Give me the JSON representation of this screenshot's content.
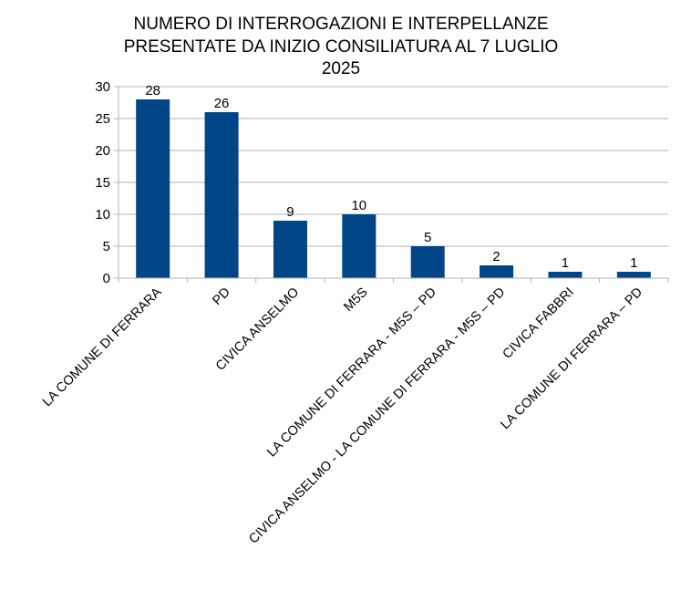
{
  "chart_data": {
    "type": "bar",
    "title": [
      "NUMERO DI INTERROGAZIONI E INTERPELLANZE",
      "PRESENTATE DA INIZIO CONSILIATURA AL 7 LUGLIO",
      "2025"
    ],
    "categories": [
      "LA COMUNE DI FERRARA",
      "PD",
      "CIVICA ANSELMO",
      "M5S",
      "LA COMUNE DI FERRARA - M5S – PD",
      "CIVICA ANSELMO - LA COMUNE DI FERRARA - M5S – PD",
      "CIVICA FABBRI",
      "LA COMUNE DI FERRARA – PD"
    ],
    "values": [
      28,
      26,
      9,
      10,
      5,
      2,
      1,
      1
    ],
    "ylim": [
      0,
      30
    ],
    "yticks": [
      0,
      5,
      10,
      15,
      20,
      25,
      30
    ],
    "grid": true,
    "legend": "none",
    "bar_color": "#004586",
    "grid_color": "#b3b3b3",
    "axis_color": "#b3b3b3"
  }
}
